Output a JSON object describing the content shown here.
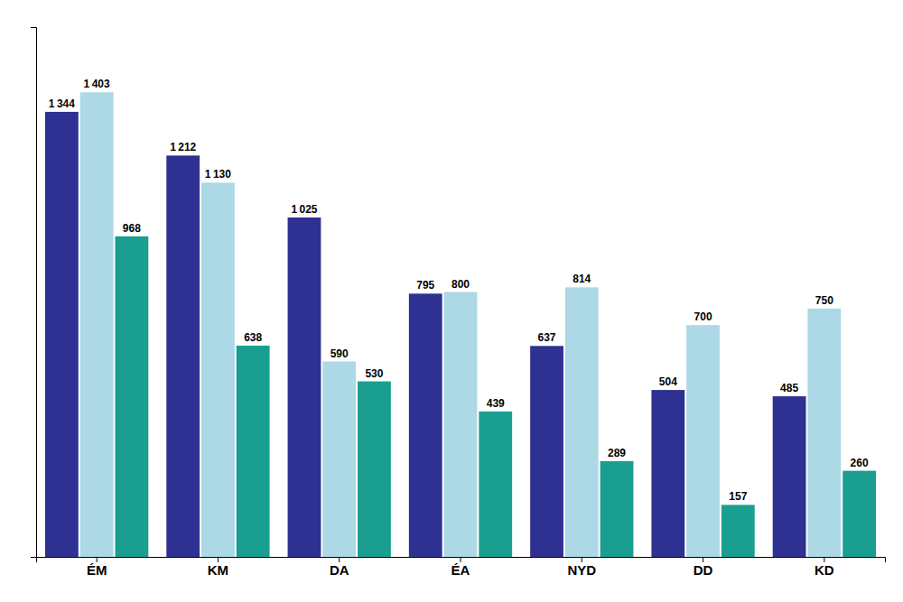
{
  "chart_data": {
    "type": "bar",
    "categories": [
      "ÉM",
      "KM",
      "DA",
      "ÉA",
      "NYD",
      "DD",
      "KD"
    ],
    "series": [
      {
        "color": "#2E3192",
        "values": [
          1344,
          1212,
          1025,
          795,
          637,
          504,
          485
        ],
        "value_labels": [
          "1 344",
          "1 212",
          "1 025",
          "795",
          "637",
          "504",
          "485"
        ]
      },
      {
        "color": "#ADD8E6",
        "values": [
          1403,
          1130,
          590,
          800,
          814,
          700,
          750
        ],
        "value_labels": [
          "1 403",
          "1 130",
          "590",
          "800",
          "814",
          "700",
          "750"
        ]
      },
      {
        "color": "#1A9E8F",
        "values": [
          968,
          638,
          530,
          439,
          289,
          157,
          260
        ],
        "value_labels": [
          "968",
          "638",
          "530",
          "439",
          "289",
          "157",
          "260"
        ]
      }
    ],
    "ylim": [
      0,
      1600
    ],
    "yticks": [],
    "grid": false,
    "data_labels": true,
    "tick_labels": "x"
  }
}
